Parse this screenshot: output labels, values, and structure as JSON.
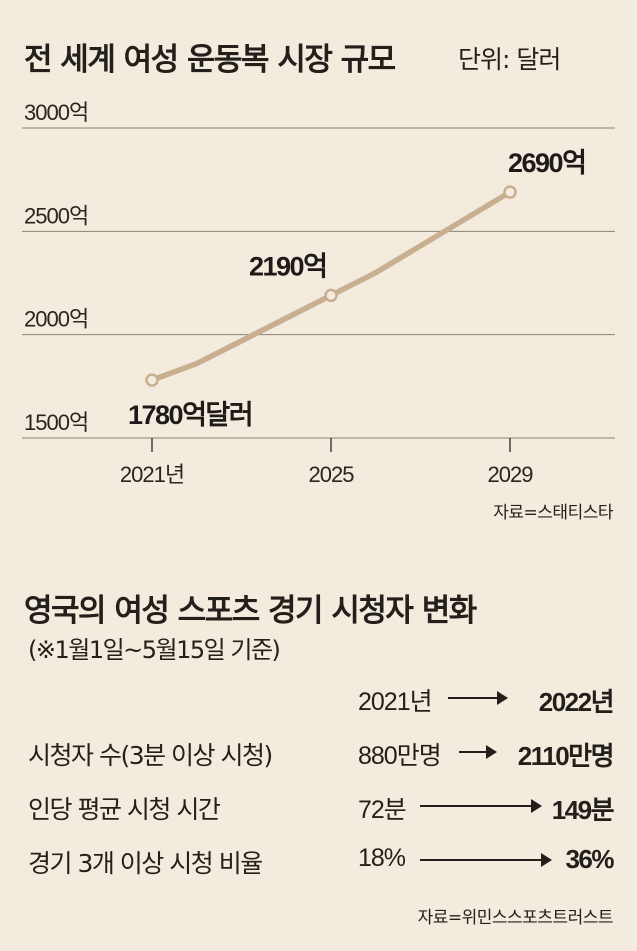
{
  "chart_section": {
    "title": "전 세계 여성 운동복 시장 규모",
    "unit": "단위: 달러",
    "source": "자료=스태티스타"
  },
  "chart_data": {
    "type": "line",
    "title": "전 세계 여성 운동복 시장 규모",
    "unit": "단위: 달러",
    "x": [
      2021,
      2022,
      2023,
      2024,
      2025,
      2026,
      2027,
      2028,
      2029
    ],
    "x_tick_labels": [
      {
        "x": 2021,
        "label": "2021년"
      },
      {
        "x": 2025,
        "label": "2025"
      },
      {
        "x": 2029,
        "label": "2029"
      }
    ],
    "y_ticks": [
      {
        "value": 1500,
        "label": "1500억"
      },
      {
        "value": 2000,
        "label": "2000억"
      },
      {
        "value": 2500,
        "label": "2500억"
      },
      {
        "value": 3000,
        "label": "3000억"
      }
    ],
    "ylim": [
      1500,
      3000
    ],
    "series": [
      {
        "values": [
          1780,
          1860,
          1970,
          2080,
          2190,
          2300,
          2430,
          2560,
          2690
        ]
      }
    ],
    "markers": [
      {
        "x": 2021,
        "value": 1780,
        "label": "1780억달러"
      },
      {
        "x": 2025,
        "value": 2190,
        "label": "2190억"
      },
      {
        "x": 2029,
        "value": 2690,
        "label": "2690억"
      }
    ],
    "grid": true,
    "line_color": "#c8af90",
    "source": "자료=스태티스타"
  },
  "table_section": {
    "title": "영국의 여성 스포츠 경기 시청자 변화",
    "basis": "(※1월1일~5월15일 기준)",
    "header": {
      "from": "2021년",
      "to": "2022년"
    },
    "rows": [
      {
        "label": "시청자 수(3분 이상 시청)",
        "from": "880만명",
        "to": "2110만명"
      },
      {
        "label": "인당 평균 시청 시간",
        "from": "72분",
        "to": "149분"
      },
      {
        "label": "경기 3개 이상 시청 비율",
        "from": "18%",
        "to": "36%"
      }
    ],
    "source": "자료=위민스스포츠트러스트"
  }
}
